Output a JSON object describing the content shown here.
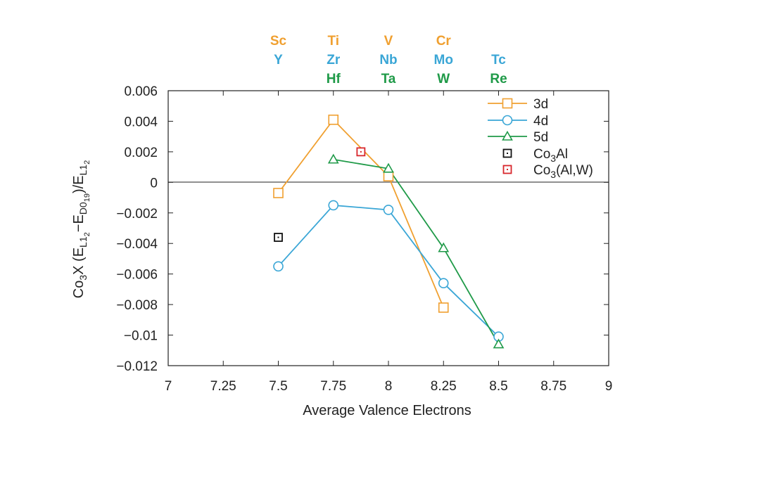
{
  "colors": {
    "3d": "#f0a030",
    "4d": "#3aa6d6",
    "5d": "#1f9a48",
    "Co3Al": "#111111",
    "Co3AlW": "#d8262c"
  },
  "chart_data": {
    "type": "line",
    "xlabel": "Average Valence Electrons",
    "ylabel": {
      "prefix": "Co",
      "sub1": "3",
      "mid": "X (E",
      "sub2": "L1",
      "sub3": "2",
      "minus": "−E",
      "sub4": "D0",
      "sub5": "19",
      "close": ")/E",
      "sub6": "L1",
      "sub7": "2"
    },
    "xlim": [
      7,
      9
    ],
    "ylim": [
      -0.012,
      0.006
    ],
    "x_ticks": [
      "7",
      "7.25",
      "7.5",
      "7.75",
      "8",
      "8.25",
      "8.5",
      "8.75",
      "9"
    ],
    "y_ticks": [
      "0.006",
      "0.004",
      "0.002",
      "0",
      "-0.002",
      "-0.004",
      "-0.006",
      "-0.008",
      "-0.01",
      "-0.012"
    ],
    "grid": false,
    "zero_line": true,
    "legend_position": "top-right",
    "series": [
      {
        "name": "3d",
        "marker": "square",
        "color_key": "3d",
        "connected": true,
        "points": [
          [
            7.5,
            -0.0007
          ],
          [
            7.75,
            0.0041
          ],
          [
            8.0,
            0.0004
          ],
          [
            8.25,
            -0.0082
          ]
        ]
      },
      {
        "name": "4d",
        "marker": "circle",
        "color_key": "4d",
        "connected": true,
        "points": [
          [
            7.5,
            -0.0055
          ],
          [
            7.75,
            -0.0015
          ],
          [
            8.0,
            -0.0018
          ],
          [
            8.25,
            -0.0066
          ],
          [
            8.5,
            -0.0101
          ]
        ]
      },
      {
        "name": "5d",
        "marker": "triangle",
        "color_key": "5d",
        "connected": true,
        "points": [
          [
            7.75,
            0.0015
          ],
          [
            8.0,
            0.0009
          ],
          [
            8.25,
            -0.0043
          ],
          [
            8.5,
            -0.0106
          ]
        ]
      },
      {
        "name": "Co3Al",
        "legend_label": {
          "a": "Co",
          "sub": "3",
          "b": "Al"
        },
        "marker": "dotted-square",
        "color_key": "Co3Al",
        "connected": false,
        "points": [
          [
            7.5,
            -0.0036
          ]
        ]
      },
      {
        "name": "Co3(Al,W)",
        "legend_label": {
          "a": "Co",
          "sub": "3",
          "b": "(Al,W)"
        },
        "marker": "dotted-square",
        "color_key": "Co3AlW",
        "connected": false,
        "points": [
          [
            7.875,
            0.002
          ]
        ]
      }
    ],
    "element_labels": [
      {
        "x": 7.5,
        "rows": [
          {
            "text": "Sc",
            "color_key": "3d"
          },
          {
            "text": "Y",
            "color_key": "4d"
          }
        ]
      },
      {
        "x": 7.75,
        "rows": [
          {
            "text": "Ti",
            "color_key": "3d"
          },
          {
            "text": "Zr",
            "color_key": "4d"
          },
          {
            "text": "Hf",
            "color_key": "5d"
          }
        ]
      },
      {
        "x": 8.0,
        "rows": [
          {
            "text": "V",
            "color_key": "3d"
          },
          {
            "text": "Nb",
            "color_key": "4d"
          },
          {
            "text": "Ta",
            "color_key": "5d"
          }
        ]
      },
      {
        "x": 8.25,
        "rows": [
          {
            "text": "Cr",
            "color_key": "3d"
          },
          {
            "text": "Mo",
            "color_key": "4d"
          },
          {
            "text": "W",
            "color_key": "5d"
          }
        ]
      },
      {
        "x": 8.5,
        "rows": [
          {
            "text": "",
            "color_key": "3d"
          },
          {
            "text": "Tc",
            "color_key": "4d"
          },
          {
            "text": "Re",
            "color_key": "5d"
          }
        ]
      }
    ]
  }
}
